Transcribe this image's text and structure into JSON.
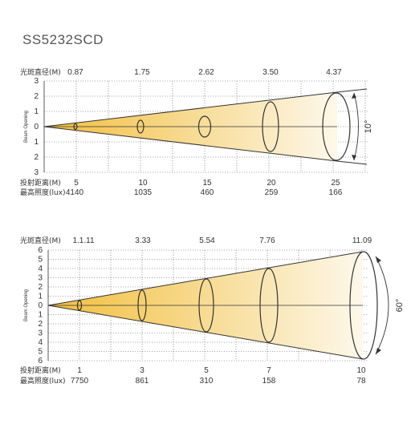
{
  "title": "SS5232SCD",
  "charts": [
    {
      "spot_label": "光斑直径(M)",
      "spot_values": [
        "0.87",
        "1.75",
        "2.62",
        "3.50",
        "4.37"
      ],
      "distance_label": "投射距离(M)",
      "distance_values": [
        "5",
        "10",
        "15",
        "20",
        "25"
      ],
      "lux_label": "最高照度(lux)",
      "lux_values": [
        "4140",
        "1035",
        "460",
        "259",
        "166"
      ],
      "y_axis_label": "Beam Opening",
      "y_ticks": [
        "3",
        "2",
        "1",
        "0",
        "1",
        "2",
        "3"
      ],
      "angle": "10°"
    },
    {
      "spot_label": "光斑直径(M)",
      "spot_values": [
        "1.1.11",
        "3.33",
        "5.54",
        "7.76",
        "11.09"
      ],
      "distance_label": "投射距离(M)",
      "distance_values": [
        "1",
        "3",
        "5",
        "7",
        "10"
      ],
      "lux_label": "最高照度(lux)",
      "lux_values": [
        "7750",
        "861",
        "310",
        "158",
        "78"
      ],
      "y_axis_label": "Beam Opening",
      "y_ticks": [
        "6",
        "5",
        "4",
        "3",
        "2",
        "1",
        "0",
        "1",
        "2",
        "3",
        "4",
        "5",
        "6"
      ],
      "angle": "60°"
    }
  ],
  "colors": {
    "beam_start": "#f2c14a",
    "beam_end": "#fdf7e6",
    "line": "#333333",
    "grid": "#555555"
  }
}
